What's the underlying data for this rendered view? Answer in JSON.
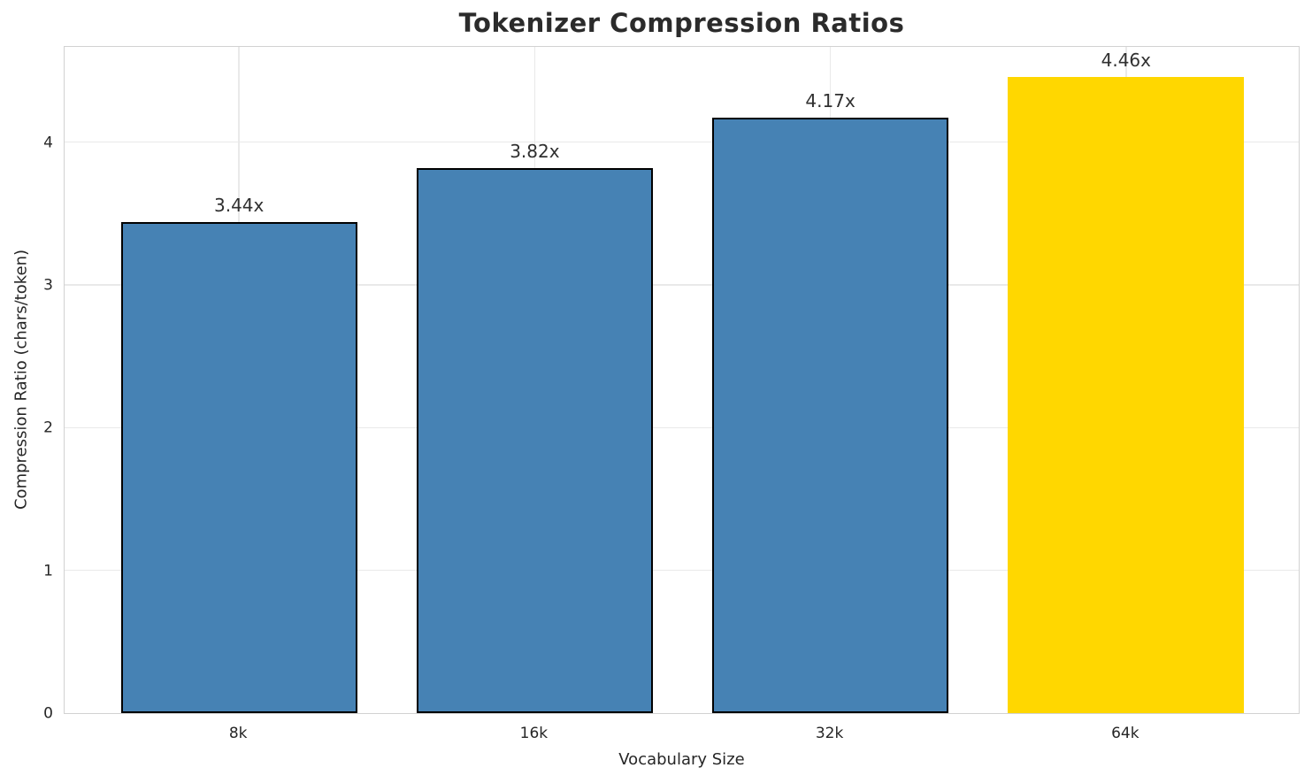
{
  "chart_data": {
    "type": "bar",
    "title": "Tokenizer Compression Ratios",
    "xlabel": "Vocabulary Size",
    "ylabel": "Compression Ratio (chars/token)",
    "categories": [
      "8k",
      "16k",
      "32k",
      "64k"
    ],
    "values": [
      3.44,
      3.82,
      4.17,
      4.46
    ],
    "bar_labels": [
      "3.44x",
      "3.82x",
      "4.17x",
      "4.46x"
    ],
    "bar_colors": [
      "#4682b4",
      "#4682b4",
      "#4682b4",
      "#ffd700"
    ],
    "bar_edge_colors": [
      "#000000",
      "#000000",
      "#000000",
      "#ffd700"
    ],
    "highlighted_category": "64k",
    "yticks": [
      0,
      1,
      2,
      3,
      4
    ],
    "ylim": [
      0,
      4.68
    ],
    "xlim": [
      -0.59,
      3.59
    ],
    "bar_width": 0.8,
    "grid": true,
    "legend": false,
    "colors": {
      "grid": "#e9e9e9",
      "spine": "#d2d2d2",
      "text": "#262626",
      "background": "#ffffff"
    }
  }
}
